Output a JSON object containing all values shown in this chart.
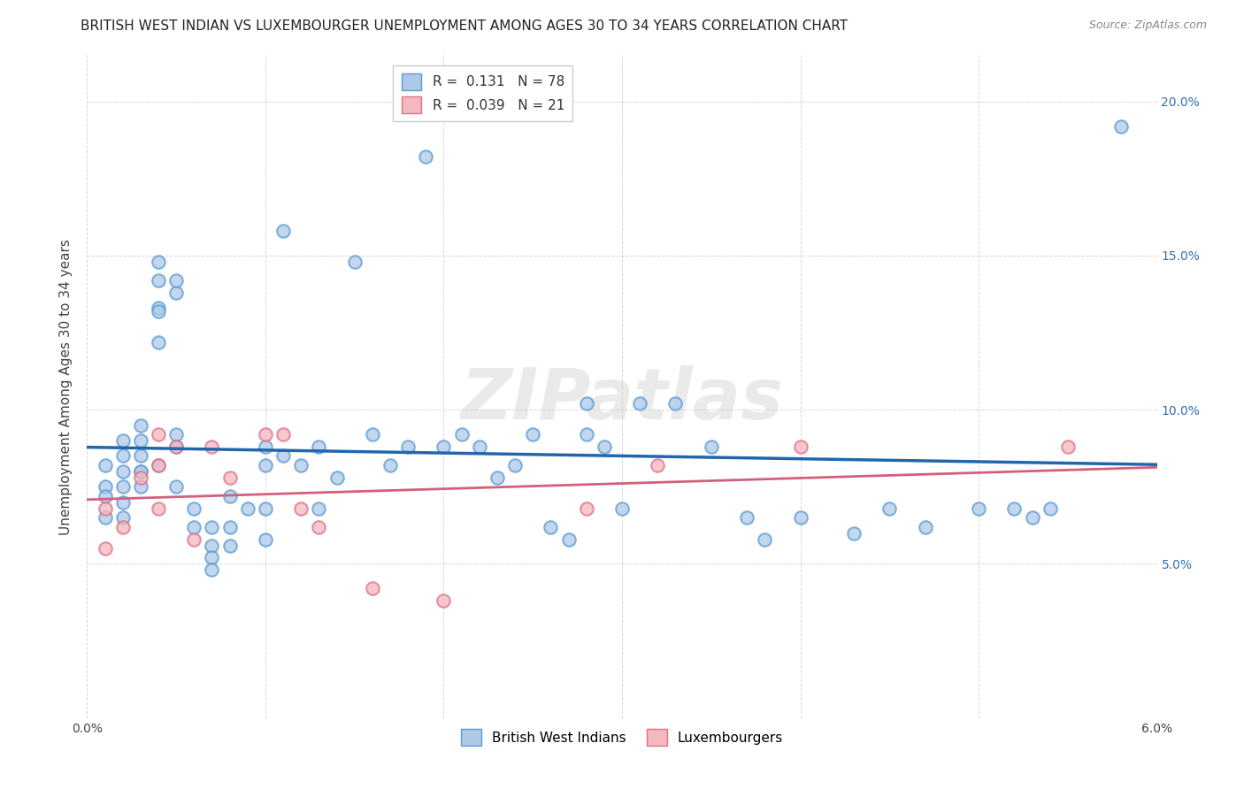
{
  "title": "BRITISH WEST INDIAN VS LUXEMBOURGER UNEMPLOYMENT AMONG AGES 30 TO 34 YEARS CORRELATION CHART",
  "source": "Source: ZipAtlas.com",
  "ylabel": "Unemployment Among Ages 30 to 34 years",
  "xlim": [
    0.0,
    0.06
  ],
  "ylim": [
    0.0,
    0.215
  ],
  "xticks": [
    0.0,
    0.01,
    0.02,
    0.03,
    0.04,
    0.05,
    0.06
  ],
  "xtick_labels": [
    "0.0%",
    "",
    "",
    "",
    "",
    "",
    "6.0%"
  ],
  "yticks": [
    0.0,
    0.05,
    0.1,
    0.15,
    0.2
  ],
  "ytick_labels_right": [
    "",
    "5.0%",
    "10.0%",
    "15.0%",
    "20.0%"
  ],
  "blue_R": "0.131",
  "blue_N": "78",
  "pink_R": "0.039",
  "pink_N": "21",
  "blue_fill": "#aec9e8",
  "blue_edge": "#5b9bd5",
  "pink_fill": "#f4b8c1",
  "pink_edge": "#e07080",
  "blue_line_color": "#2166ac",
  "pink_line_color": "#d45f7a",
  "watermark": "ZIPatlas",
  "blue_points_x": [
    0.001,
    0.001,
    0.001,
    0.001,
    0.002,
    0.002,
    0.002,
    0.002,
    0.002,
    0.002,
    0.003,
    0.003,
    0.003,
    0.003,
    0.003,
    0.003,
    0.004,
    0.004,
    0.004,
    0.004,
    0.004,
    0.004,
    0.005,
    0.005,
    0.005,
    0.005,
    0.005,
    0.006,
    0.006,
    0.007,
    0.007,
    0.007,
    0.007,
    0.008,
    0.008,
    0.008,
    0.009,
    0.01,
    0.01,
    0.01,
    0.01,
    0.011,
    0.011,
    0.012,
    0.013,
    0.013,
    0.014,
    0.015,
    0.016,
    0.017,
    0.018,
    0.019,
    0.02,
    0.021,
    0.022,
    0.023,
    0.024,
    0.025,
    0.026,
    0.027,
    0.028,
    0.028,
    0.029,
    0.03,
    0.031,
    0.033,
    0.035,
    0.037,
    0.038,
    0.04,
    0.043,
    0.045,
    0.047,
    0.05,
    0.052,
    0.053,
    0.054,
    0.058
  ],
  "blue_points_y": [
    0.075,
    0.082,
    0.072,
    0.065,
    0.075,
    0.085,
    0.09,
    0.08,
    0.07,
    0.065,
    0.09,
    0.085,
    0.08,
    0.075,
    0.08,
    0.095,
    0.122,
    0.133,
    0.142,
    0.148,
    0.132,
    0.082,
    0.138,
    0.142,
    0.092,
    0.088,
    0.075,
    0.068,
    0.062,
    0.062,
    0.056,
    0.052,
    0.048,
    0.056,
    0.072,
    0.062,
    0.068,
    0.088,
    0.068,
    0.058,
    0.082,
    0.085,
    0.158,
    0.082,
    0.068,
    0.088,
    0.078,
    0.148,
    0.092,
    0.082,
    0.088,
    0.182,
    0.088,
    0.092,
    0.088,
    0.078,
    0.082,
    0.092,
    0.062,
    0.058,
    0.092,
    0.102,
    0.088,
    0.068,
    0.102,
    0.102,
    0.088,
    0.065,
    0.058,
    0.065,
    0.06,
    0.068,
    0.062,
    0.068,
    0.068,
    0.065,
    0.068,
    0.192
  ],
  "pink_points_x": [
    0.001,
    0.001,
    0.002,
    0.003,
    0.004,
    0.004,
    0.004,
    0.005,
    0.006,
    0.007,
    0.008,
    0.01,
    0.011,
    0.012,
    0.013,
    0.016,
    0.02,
    0.028,
    0.032,
    0.04,
    0.055
  ],
  "pink_points_y": [
    0.068,
    0.055,
    0.062,
    0.078,
    0.082,
    0.092,
    0.068,
    0.088,
    0.058,
    0.088,
    0.078,
    0.092,
    0.092,
    0.068,
    0.062,
    0.042,
    0.038,
    0.068,
    0.082,
    0.088,
    0.088
  ],
  "bg_color": "#ffffff",
  "grid_color": "#cccccc",
  "title_fontsize": 11,
  "axis_label_fontsize": 11,
  "tick_fontsize": 10,
  "legend_fontsize": 11,
  "marker_size": 110
}
